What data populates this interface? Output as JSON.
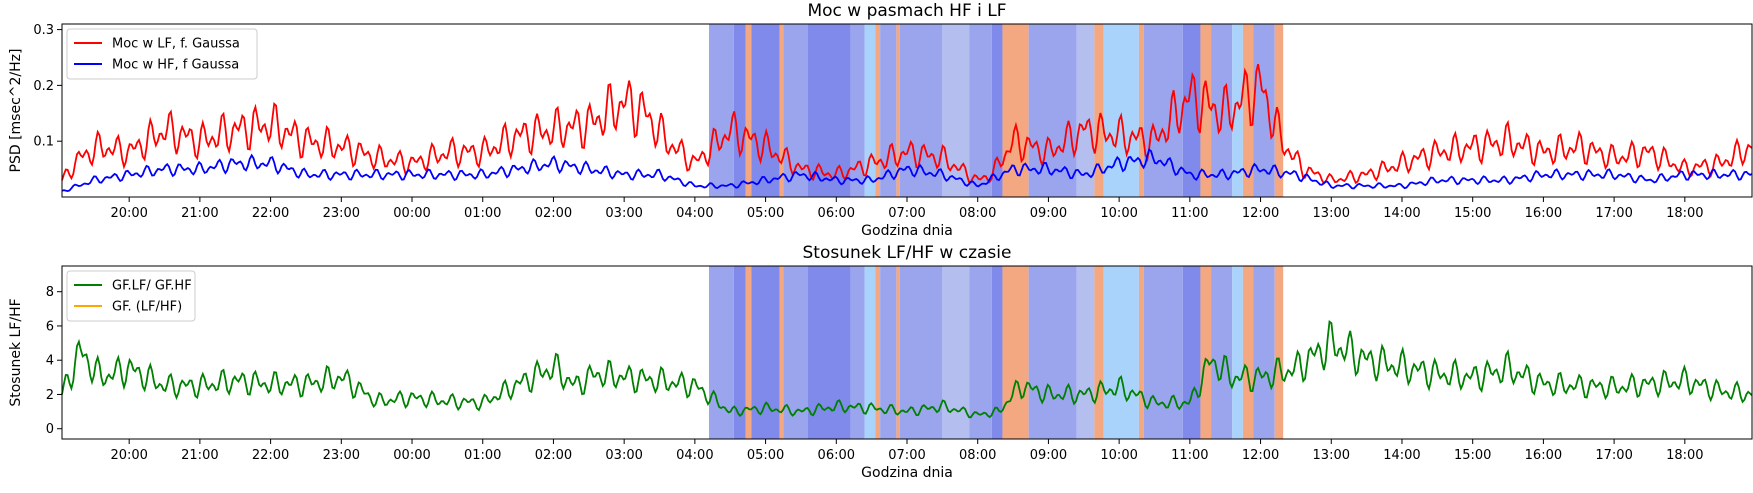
{
  "colors": {
    "lf": "#ff0000",
    "hf": "#0000ff",
    "ratio": "#008000",
    "ratio_alt": "#ffa500",
    "band_a": "#9aa5ee",
    "band_b": "#7f8aea",
    "band_c": "#b4beef",
    "band_light": "#aad3fb",
    "band_orange": "#f4a882"
  },
  "chart_data": [
    {
      "type": "line",
      "title": "Moc w pasmach HF i LF",
      "xlabel": "Godzina dnia",
      "ylabel": "PSD [msec^2/Hz]",
      "x_tick_labels": [
        "20:00",
        "21:00",
        "22:00",
        "23:00",
        "00:00",
        "01:00",
        "02:00",
        "03:00",
        "04:00",
        "05:00",
        "06:00",
        "07:00",
        "08:00",
        "09:00",
        "10:00",
        "11:00",
        "12:00",
        "13:00",
        "14:00",
        "15:00",
        "16:00",
        "17:00",
        "18:00"
      ],
      "x_tick_hours": [
        20,
        21,
        22,
        23,
        24,
        25,
        26,
        27,
        28,
        29,
        30,
        31,
        32,
        33,
        34,
        35,
        36,
        37,
        38,
        39,
        40,
        41,
        42
      ],
      "xlim": [
        19.05,
        42.95
      ],
      "ylim": [
        0.0,
        0.31
      ],
      "y_ticks": [
        0.1,
        0.2,
        0.3
      ],
      "y_tick_labels": [
        "0.1",
        "0.2",
        "0.3"
      ],
      "legend": "top-left",
      "series": [
        {
          "name": "Moc w LF, f. Gaussa",
          "color": "lf",
          "hours": [
            19.05,
            19.3,
            19.6,
            20.0,
            20.5,
            21.0,
            21.5,
            22.0,
            22.5,
            23.0,
            23.5,
            24.0,
            24.5,
            25.0,
            25.5,
            26.0,
            26.5,
            27.0,
            27.3,
            27.6,
            28.0,
            28.5,
            29.0,
            29.5,
            30.0,
            30.5,
            31.0,
            31.5,
            32.0,
            32.2,
            32.5,
            33.0,
            33.5,
            34.0,
            34.5,
            35.0,
            35.5,
            36.0,
            36.3,
            36.6,
            37.0,
            37.5,
            38.0,
            38.5,
            39.0,
            39.5,
            40.0,
            40.5,
            41.0,
            41.5,
            42.0,
            42.5,
            42.95
          ],
          "values": [
            0.03,
            0.07,
            0.09,
            0.08,
            0.12,
            0.1,
            0.12,
            0.13,
            0.1,
            0.09,
            0.07,
            0.06,
            0.08,
            0.08,
            0.11,
            0.12,
            0.13,
            0.17,
            0.15,
            0.1,
            0.06,
            0.12,
            0.09,
            0.05,
            0.04,
            0.06,
            0.08,
            0.07,
            0.03,
            0.04,
            0.1,
            0.08,
            0.12,
            0.11,
            0.1,
            0.18,
            0.15,
            0.2,
            0.1,
            0.05,
            0.03,
            0.04,
            0.06,
            0.08,
            0.09,
            0.1,
            0.08,
            0.09,
            0.07,
            0.08,
            0.05,
            0.06,
            0.09
          ]
        },
        {
          "name": "Moc w HF, f Gaussa",
          "color": "hf",
          "hours": [
            19.05,
            19.5,
            20.0,
            20.5,
            21.0,
            21.5,
            22.0,
            22.5,
            23.0,
            23.5,
            24.0,
            24.5,
            25.0,
            25.5,
            26.0,
            26.5,
            27.0,
            27.5,
            28.0,
            28.5,
            29.0,
            29.5,
            30.0,
            30.5,
            31.0,
            31.5,
            32.0,
            32.5,
            33.0,
            33.5,
            34.0,
            34.5,
            35.0,
            35.5,
            36.0,
            36.5,
            37.0,
            37.5,
            38.0,
            38.5,
            39.0,
            39.5,
            40.0,
            40.5,
            41.0,
            41.5,
            42.0,
            42.5,
            42.95
          ],
          "values": [
            0.01,
            0.03,
            0.04,
            0.05,
            0.05,
            0.06,
            0.06,
            0.04,
            0.04,
            0.04,
            0.04,
            0.04,
            0.04,
            0.05,
            0.06,
            0.05,
            0.04,
            0.04,
            0.02,
            0.02,
            0.03,
            0.04,
            0.03,
            0.03,
            0.05,
            0.04,
            0.02,
            0.05,
            0.05,
            0.04,
            0.06,
            0.07,
            0.04,
            0.04,
            0.05,
            0.04,
            0.02,
            0.02,
            0.02,
            0.03,
            0.03,
            0.03,
            0.04,
            0.04,
            0.04,
            0.03,
            0.04,
            0.04,
            0.04
          ]
        }
      ]
    },
    {
      "type": "line",
      "title": "Stosunek LF/HF w czasie",
      "xlabel": "Godzina dnia",
      "ylabel": "Stosunek LF/HF",
      "x_tick_labels": [
        "20:00",
        "21:00",
        "22:00",
        "23:00",
        "00:00",
        "01:00",
        "02:00",
        "03:00",
        "04:00",
        "05:00",
        "06:00",
        "07:00",
        "08:00",
        "09:00",
        "10:00",
        "11:00",
        "12:00",
        "13:00",
        "14:00",
        "15:00",
        "16:00",
        "17:00",
        "18:00"
      ],
      "x_tick_hours": [
        20,
        21,
        22,
        23,
        24,
        25,
        26,
        27,
        28,
        29,
        30,
        31,
        32,
        33,
        34,
        35,
        36,
        37,
        38,
        39,
        40,
        41,
        42
      ],
      "xlim": [
        19.05,
        42.95
      ],
      "ylim": [
        -0.6,
        9.5
      ],
      "y_ticks": [
        0,
        2,
        4,
        6,
        8
      ],
      "y_tick_labels": [
        "0",
        "2",
        "4",
        "6",
        "8"
      ],
      "legend": "top-left",
      "series": [
        {
          "name": "GF.LF/ GF.HF",
          "color": "ratio",
          "hours": [
            19.05,
            19.3,
            19.6,
            20.0,
            20.5,
            21.0,
            21.5,
            22.0,
            22.5,
            23.0,
            23.5,
            24.0,
            24.5,
            25.0,
            25.5,
            26.0,
            26.3,
            26.6,
            27.0,
            27.5,
            28.0,
            28.5,
            29.0,
            29.5,
            30.0,
            30.5,
            31.0,
            31.5,
            32.0,
            32.3,
            32.6,
            33.0,
            33.5,
            34.0,
            34.5,
            35.0,
            35.3,
            35.6,
            36.0,
            36.5,
            37.0,
            37.5,
            38.0,
            38.5,
            39.0,
            39.5,
            40.0,
            40.5,
            41.0,
            41.5,
            42.0,
            42.5,
            42.95
          ],
          "values": [
            2.0,
            4.5,
            3.0,
            3.5,
            2.5,
            2.5,
            2.8,
            2.6,
            2.6,
            3.0,
            1.6,
            1.8,
            1.6,
            1.5,
            2.6,
            3.6,
            2.5,
            3.2,
            3.0,
            2.8,
            2.5,
            1.0,
            1.2,
            1.0,
            1.3,
            1.2,
            1.0,
            1.3,
            0.8,
            1.0,
            2.5,
            2.0,
            2.0,
            2.4,
            1.5,
            1.5,
            4.0,
            3.0,
            3.0,
            3.5,
            5.0,
            4.0,
            3.6,
            3.2,
            3.0,
            3.5,
            2.6,
            2.5,
            2.4,
            2.6,
            2.8,
            2.2,
            2.0
          ]
        },
        {
          "name": "GF. (LF/HF)",
          "color": "ratio_alt",
          "hours": [],
          "values": []
        }
      ]
    }
  ],
  "shaded_bands": [
    {
      "from": 28.2,
      "to": 28.55,
      "color": "band_a"
    },
    {
      "from": 28.55,
      "to": 28.72,
      "color": "band_b"
    },
    {
      "from": 28.72,
      "to": 28.8,
      "color": "band_orange"
    },
    {
      "from": 28.8,
      "to": 29.2,
      "color": "band_b"
    },
    {
      "from": 29.2,
      "to": 29.25,
      "color": "band_orange"
    },
    {
      "from": 29.25,
      "to": 29.6,
      "color": "band_a"
    },
    {
      "from": 29.6,
      "to": 30.2,
      "color": "band_b"
    },
    {
      "from": 30.2,
      "to": 30.4,
      "color": "band_a"
    },
    {
      "from": 30.4,
      "to": 30.55,
      "color": "band_light"
    },
    {
      "from": 30.55,
      "to": 30.62,
      "color": "band_orange"
    },
    {
      "from": 30.62,
      "to": 30.85,
      "color": "band_a"
    },
    {
      "from": 30.85,
      "to": 30.9,
      "color": "band_orange"
    },
    {
      "from": 30.9,
      "to": 31.5,
      "color": "band_a"
    },
    {
      "from": 31.5,
      "to": 31.88,
      "color": "band_c"
    },
    {
      "from": 31.88,
      "to": 32.2,
      "color": "band_a"
    },
    {
      "from": 32.2,
      "to": 32.35,
      "color": "band_b"
    },
    {
      "from": 32.35,
      "to": 32.72,
      "color": "band_orange"
    },
    {
      "from": 32.72,
      "to": 33.4,
      "color": "band_a"
    },
    {
      "from": 33.4,
      "to": 33.65,
      "color": "band_c"
    },
    {
      "from": 33.65,
      "to": 33.78,
      "color": "band_orange"
    },
    {
      "from": 33.78,
      "to": 34.28,
      "color": "band_light"
    },
    {
      "from": 34.28,
      "to": 34.35,
      "color": "band_orange"
    },
    {
      "from": 34.35,
      "to": 34.9,
      "color": "band_a"
    },
    {
      "from": 34.9,
      "to": 35.15,
      "color": "band_b"
    },
    {
      "from": 35.15,
      "to": 35.3,
      "color": "band_orange"
    },
    {
      "from": 35.3,
      "to": 35.6,
      "color": "band_a"
    },
    {
      "from": 35.6,
      "to": 35.75,
      "color": "band_light"
    },
    {
      "from": 35.75,
      "to": 35.9,
      "color": "band_orange"
    },
    {
      "from": 35.9,
      "to": 36.2,
      "color": "band_a"
    },
    {
      "from": 36.2,
      "to": 36.32,
      "color": "band_orange"
    }
  ]
}
